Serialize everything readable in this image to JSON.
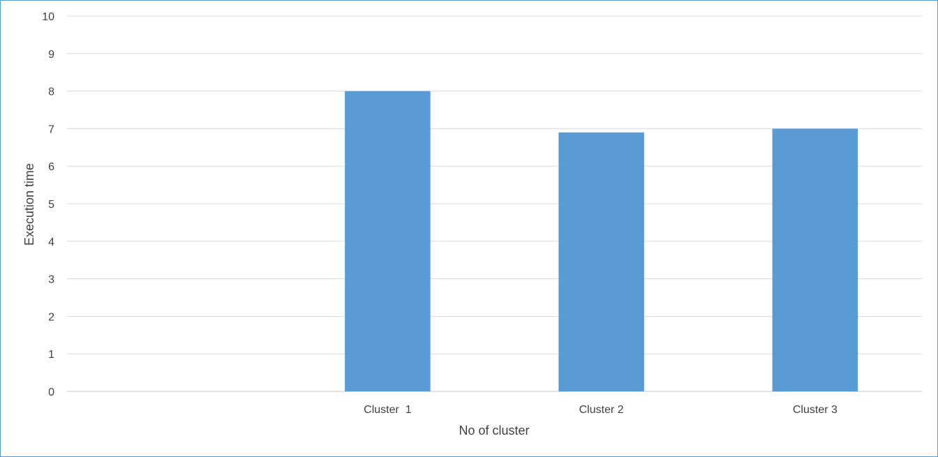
{
  "chart_data": {
    "type": "bar",
    "categories": [
      "",
      "Cluster  1",
      "Cluster 2",
      "Cluster 3"
    ],
    "values": [
      null,
      8,
      6.9,
      7
    ],
    "xlabel": "No of cluster",
    "ylabel": "Execution time",
    "ylim": [
      0,
      10
    ],
    "yticks": [
      0,
      1,
      2,
      3,
      4,
      5,
      6,
      7,
      8,
      9,
      10
    ],
    "grid": true,
    "legend": "none",
    "bar_color": "#5b9bd5",
    "grid_color": "#d9d9d9",
    "text_color": "#404040",
    "border_color": "#5b9bd5"
  }
}
